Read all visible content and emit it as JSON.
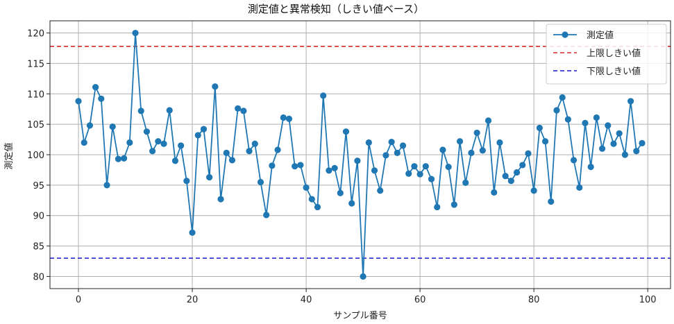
{
  "chart_data": {
    "type": "line",
    "title": "測定値と異常検知（しきい値ベース）",
    "xlabel": "サンプル番号",
    "ylabel": "測定値",
    "xlim": [
      -5,
      104
    ],
    "ylim": [
      78,
      122
    ],
    "xticks": [
      0,
      20,
      40,
      60,
      80,
      100
    ],
    "yticks": [
      80,
      85,
      90,
      95,
      100,
      105,
      110,
      115,
      120
    ],
    "grid": true,
    "legend_position": "top-right",
    "series": [
      {
        "name": "測定値",
        "color": "#1f77b4",
        "marker": "circle",
        "x": [
          0,
          1,
          2,
          3,
          4,
          5,
          6,
          7,
          8,
          9,
          10,
          11,
          12,
          13,
          14,
          15,
          16,
          17,
          18,
          19,
          20,
          21,
          22,
          23,
          24,
          25,
          26,
          27,
          28,
          29,
          30,
          31,
          32,
          33,
          34,
          35,
          36,
          37,
          38,
          39,
          40,
          41,
          42,
          43,
          44,
          45,
          46,
          47,
          48,
          49,
          50,
          51,
          52,
          53,
          54,
          55,
          56,
          57,
          58,
          59,
          60,
          61,
          62,
          63,
          64,
          65,
          66,
          67,
          68,
          69,
          70,
          71,
          72,
          73,
          74,
          75,
          76,
          77,
          78,
          79,
          80,
          81,
          82,
          83,
          84,
          85,
          86,
          87,
          88,
          89,
          90,
          91,
          92,
          93,
          94,
          95,
          96,
          97,
          98,
          99
        ],
        "y": [
          108.8,
          102.0,
          104.8,
          111.1,
          109.2,
          95.0,
          104.6,
          99.3,
          99.4,
          102.0,
          120.0,
          107.2,
          103.8,
          100.6,
          102.2,
          101.8,
          107.3,
          99.0,
          101.5,
          95.7,
          87.2,
          103.2,
          104.2,
          96.3,
          111.2,
          92.7,
          100.3,
          99.1,
          107.6,
          107.2,
          100.6,
          101.8,
          95.5,
          90.1,
          98.2,
          100.8,
          106.1,
          105.9,
          98.1,
          98.3,
          94.6,
          92.7,
          91.4,
          109.7,
          97.4,
          97.8,
          93.7,
          103.8,
          92.0,
          99.0,
          80.0,
          102.0,
          97.4,
          94.1,
          99.9,
          102.1,
          100.3,
          101.5,
          96.9,
          98.1,
          96.8,
          98.1,
          96.0,
          91.4,
          100.8,
          98.0,
          91.8,
          102.2,
          95.4,
          100.3,
          103.6,
          100.7,
          105.6,
          93.8,
          102.0,
          96.5,
          95.7,
          97.1,
          98.3,
          100.2,
          94.1,
          104.4,
          102.2,
          92.3,
          107.3,
          109.4,
          105.8,
          99.1,
          94.6,
          105.2,
          98.0,
          106.1,
          101.0,
          104.8,
          101.8,
          103.5,
          100.0,
          108.8,
          100.6,
          101.9
        ]
      },
      {
        "name": "上限しきい値",
        "color": "#d62728",
        "style": "dashed",
        "y_constant": 117.8
      },
      {
        "name": "下限しきい値",
        "color": "#1414cc",
        "style": "dashed",
        "y_constant": 83.0
      }
    ]
  }
}
